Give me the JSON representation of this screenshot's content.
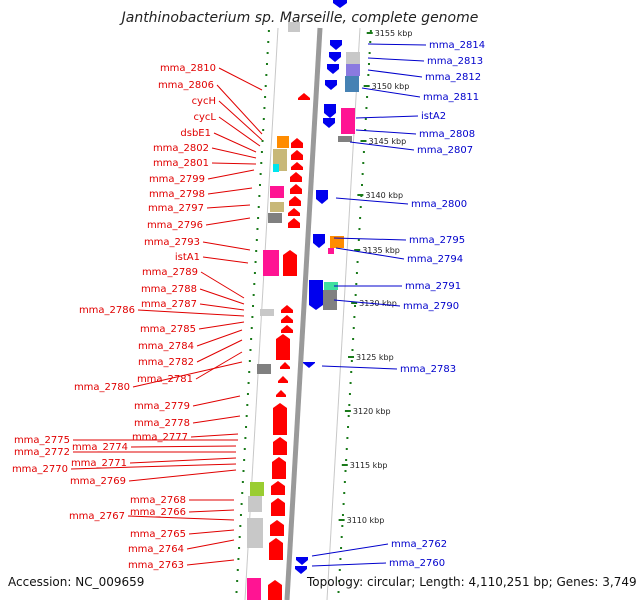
{
  "title": "Janthinobacterium sp. Marseille, complete genome",
  "footer": {
    "accession": "Accession: NC_009659",
    "topology": "Topology: circular; Length: 4,110,251 bp; Genes: 3,749"
  },
  "kbp_ticks": [
    "3155 kbp",
    "3150 kbp",
    "3145 kbp",
    "3140 kbp",
    "3135 kbp",
    "3130 kbp",
    "3125 kbp",
    "3120 kbp",
    "3115 kbp",
    "3110 kbp"
  ],
  "left_labels": [
    "mma_2810",
    "mma_2806",
    "cycH",
    "cycL",
    "dsbE1",
    "mma_2802",
    "mma_2801",
    "mma_2799",
    "mma_2798",
    "mma_2797",
    "mma_2796",
    "mma_2793",
    "istA1",
    "mma_2789",
    "mma_2788",
    "mma_2787",
    "mma_2786",
    "mma_2785",
    "mma_2784",
    "mma_2782",
    "mma_2781",
    "mma_2780",
    "mma_2779",
    "mma_2778",
    "mma_2777",
    "mma_2775",
    "mma_2774",
    "mma_2772",
    "mma_2771",
    "mma_2770",
    "mma_2769",
    "mma_2768",
    "mma_2766",
    "mma_2767",
    "mma_2765",
    "mma_2764",
    "mma_2763"
  ],
  "right_labels": [
    "mma_2814",
    "mma_2813",
    "mma_2812",
    "mma_2811",
    "istA2",
    "mma_2808",
    "mma_2807",
    "mma_2800",
    "mma_2795",
    "mma_2794",
    "mma_2791",
    "mma_2790",
    "mma_2783",
    "mma_2762",
    "mma_2760"
  ],
  "colors": {
    "left_strand": "#ff0000",
    "right_strand": "#0000ee",
    "label_left": "#e00000",
    "label_right": "#0000cc",
    "backbone": "#9a9a9a",
    "dots": "#1a7a1a",
    "misc_gene": "#ff1493",
    "orange_gene": "#ff8c00",
    "olive_gene": "#c8b878",
    "grey_gene": "#808080",
    "light_grey_gene": "#c8c8c8",
    "cyan_gene": "#00e5ee",
    "violet_gene": "#8a7ae0",
    "steel_gene": "#4682b4",
    "green_gene": "#40e0a0",
    "lime_gene": "#9acd32"
  }
}
